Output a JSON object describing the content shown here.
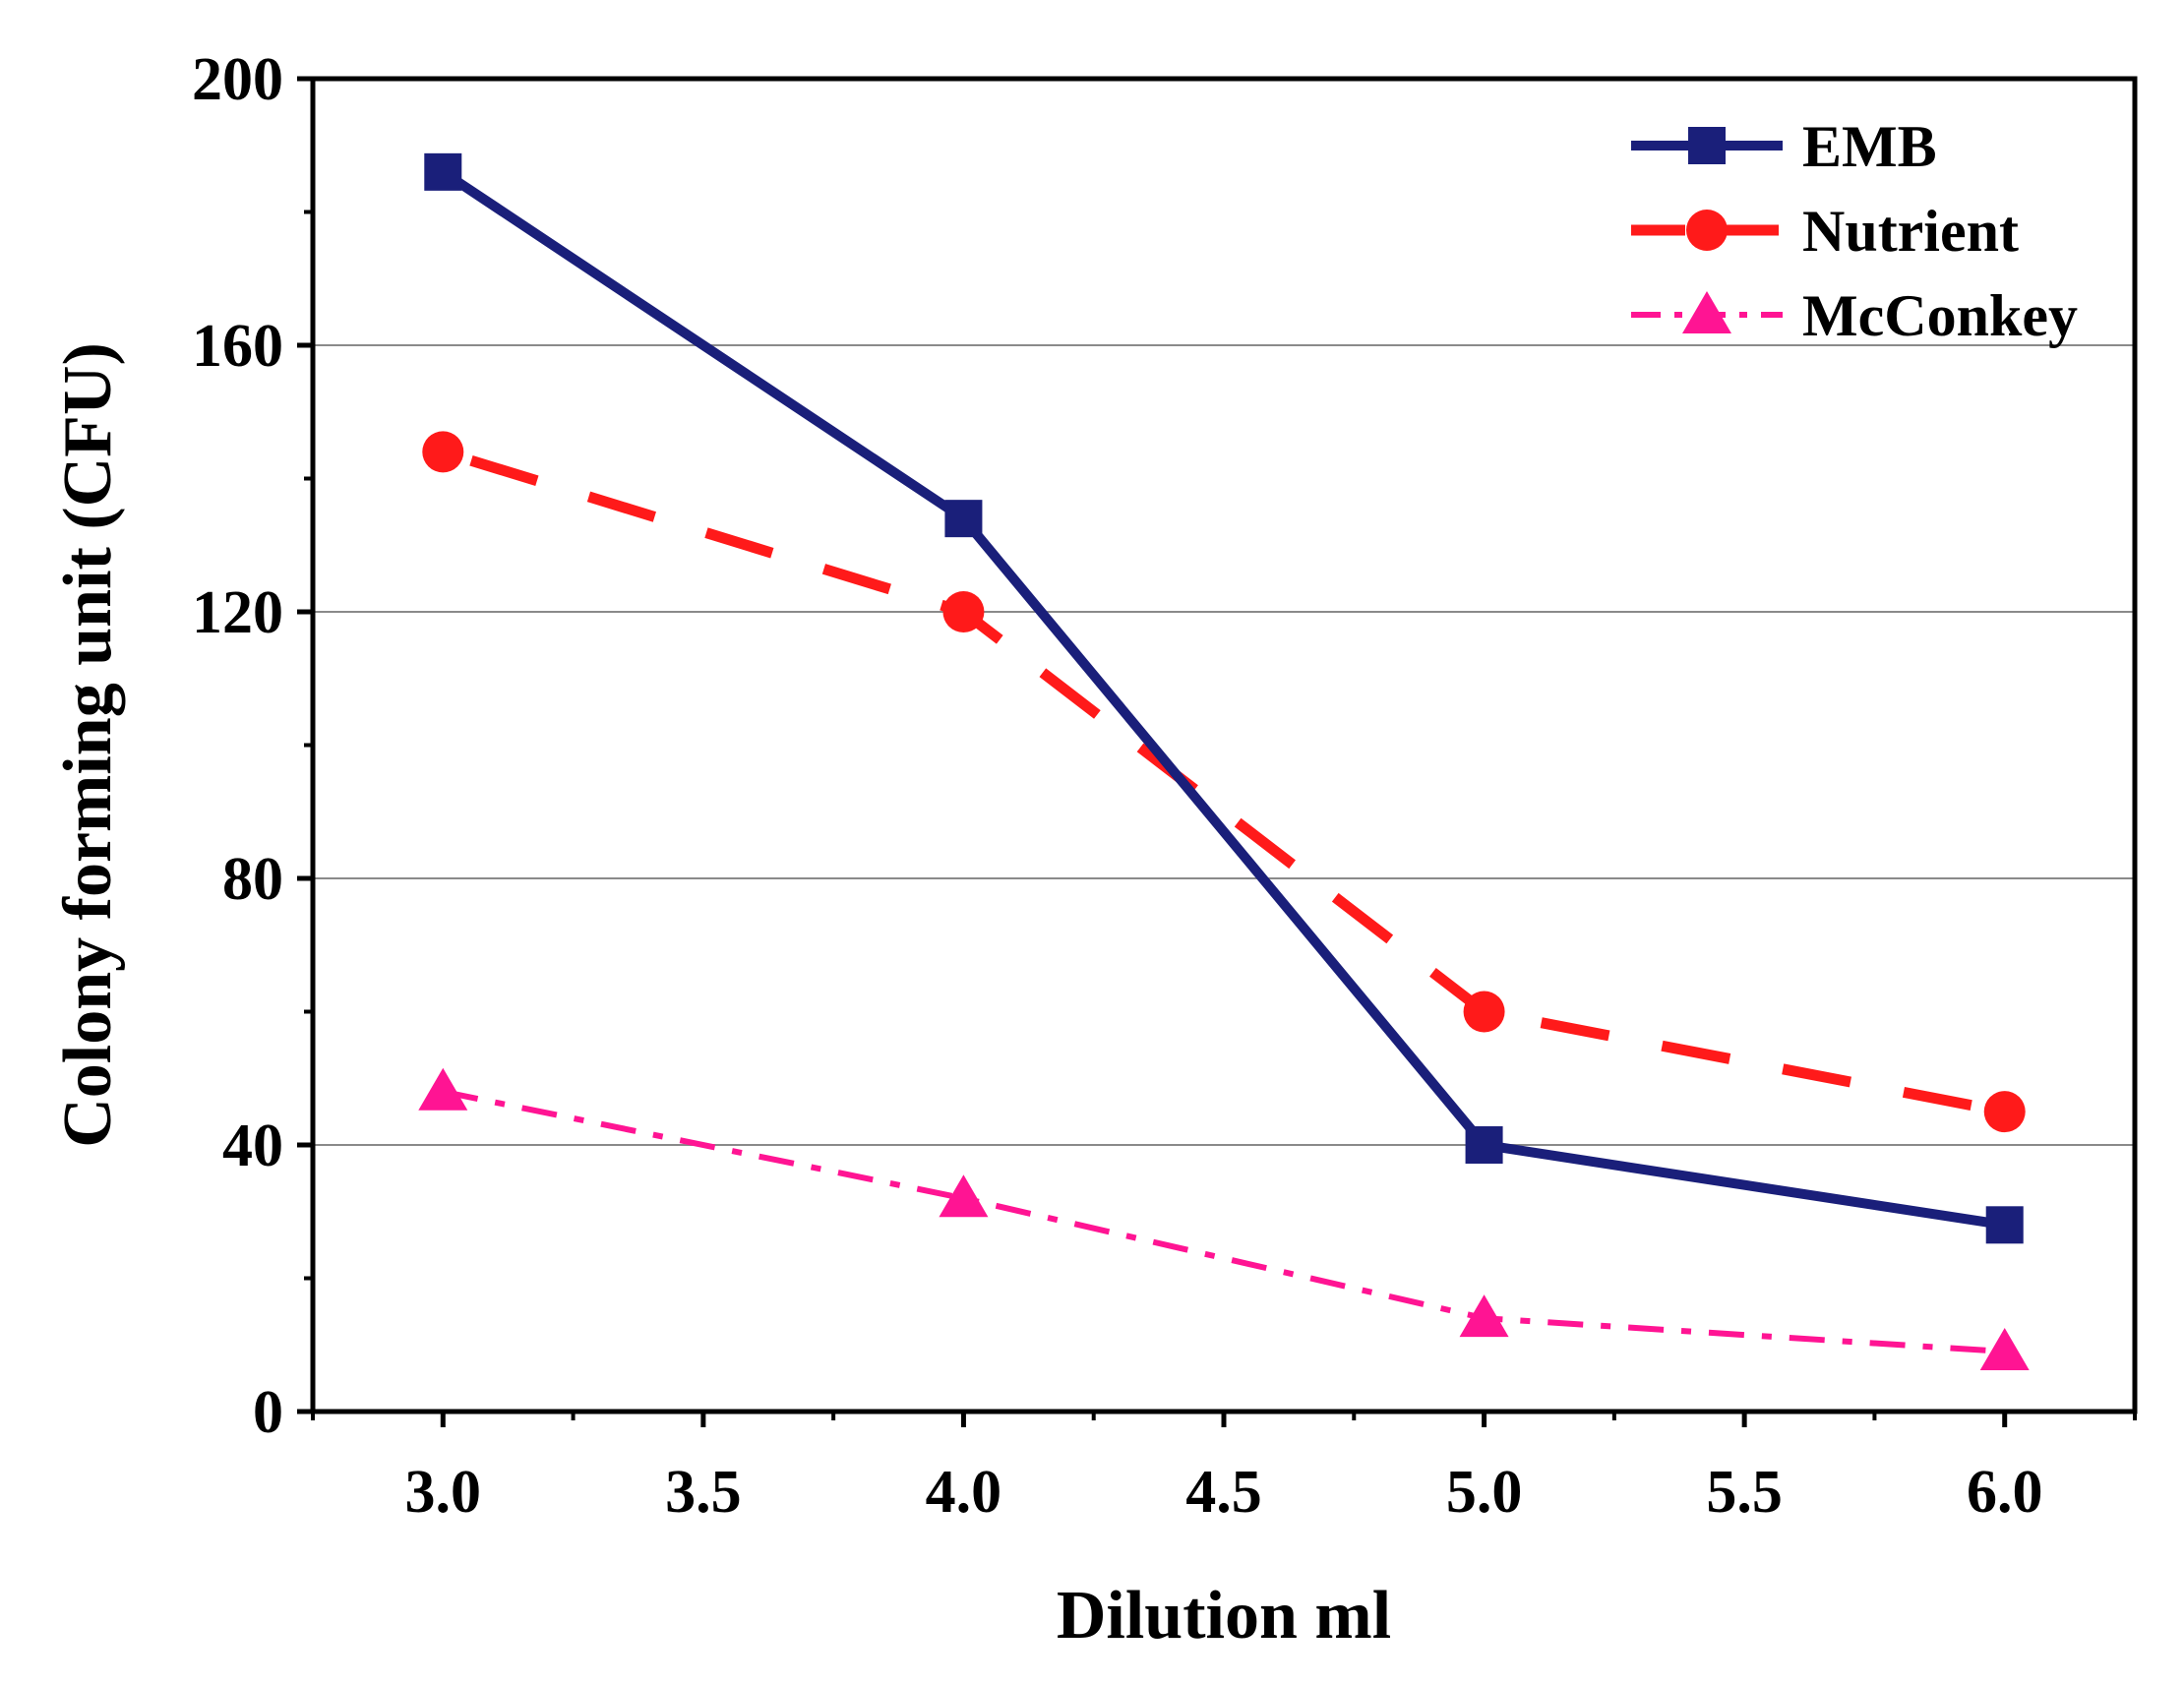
{
  "chart_data": {
    "type": "line",
    "title": "",
    "xlabel": "Dilution ml",
    "ylabel": "Colony forming unit (CFU)",
    "x": [
      3.0,
      4.0,
      5.0,
      6.0
    ],
    "xlim": [
      2.75,
      6.25
    ],
    "ylim": [
      0,
      200
    ],
    "xticks": [
      3.0,
      3.5,
      4.0,
      4.5,
      5.0,
      5.5,
      6.0
    ],
    "xtick_labels": [
      "3.0",
      "3.5",
      "4.0",
      "4.5",
      "5.0",
      "5.5",
      "6.0"
    ],
    "yticks": [
      0,
      40,
      80,
      120,
      160,
      200
    ],
    "ytick_labels": [
      "0",
      "40",
      "80",
      "120",
      "160",
      "200"
    ],
    "grid": "horizontal",
    "legend_position": "top-right",
    "series": [
      {
        "name": "EMB",
        "values": [
          186,
          134,
          40,
          28
        ],
        "color": "#1a1f7a",
        "marker": "square",
        "line_style": "solid"
      },
      {
        "name": "Nutrient",
        "values": [
          144,
          120,
          60,
          45
        ],
        "color": "#ff1a1a",
        "marker": "circle",
        "line_style": "dashed"
      },
      {
        "name": "McConkey",
        "values": [
          48,
          32,
          14,
          9
        ],
        "color": "#ff1493",
        "marker": "triangle",
        "line_style": "dash-dot"
      }
    ]
  }
}
